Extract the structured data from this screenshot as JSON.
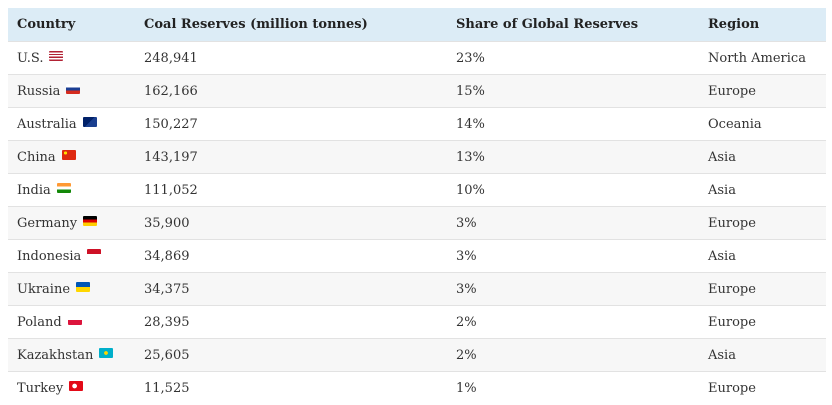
{
  "table": {
    "header": [
      "Country",
      "Coal Reserves (million tonnes)",
      "Share of Global Reserves",
      "Region"
    ],
    "rows": [
      [
        "U.S.",
        "248,941",
        "23%",
        "North America"
      ],
      [
        "Russia",
        "162,166",
        "15%",
        "Europe"
      ],
      [
        "Australia",
        "150,227",
        "14%",
        "Oceania"
      ],
      [
        "China",
        "143,197",
        "13%",
        "Asia"
      ],
      [
        "India",
        "111,052",
        "10%",
        "Asia"
      ],
      [
        "Germany",
        "35,900",
        "3%",
        "Europe"
      ],
      [
        "Indonesia",
        "34,869",
        "3%",
        "Asia"
      ],
      [
        "Ukraine",
        "34,375",
        "3%",
        "Europe"
      ],
      [
        "Poland",
        "28,395",
        "2%",
        "Europe"
      ],
      [
        "Kazakhstan",
        "25,605",
        "2%",
        "Asia"
      ],
      [
        "Turkey",
        "11,525",
        "1%",
        "Europe"
      ]
    ]
  }
}
